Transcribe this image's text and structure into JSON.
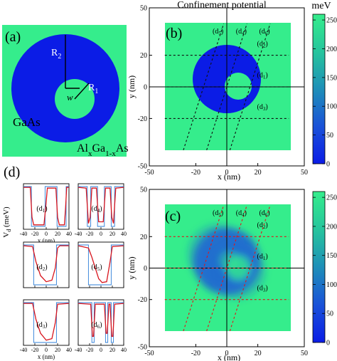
{
  "figure": {
    "title": "Confinement potential",
    "colorbar_unit": "meV",
    "colorbar_ticks": [
      "250",
      "200",
      "150",
      "100",
      "50",
      "0"
    ],
    "colors": {
      "barrier": "#35ed8c",
      "well": "#0b1ce6",
      "trace_red": "#d8141d",
      "trace_blue": "#2f7fd8",
      "dashed_black": "#111111",
      "dashed_red": "#e0161a"
    }
  },
  "panel_a": {
    "label": "(a)",
    "r2_main": "R",
    "r2_sub": "2",
    "r1_main": "R",
    "r1_sub": "1",
    "w_label": "w",
    "inner_material": "GaAs",
    "outer_parts": [
      {
        "t": "Al",
        "s": false
      },
      {
        "t": "x",
        "s": true
      },
      {
        "t": "Ga",
        "s": false
      },
      {
        "t": "1-x",
        "s": true
      },
      {
        "t": "As",
        "s": false
      }
    ]
  },
  "panel_d": {
    "label": "(d)",
    "ylabel_main": "V",
    "ylabel_sub": "d",
    "ylabel_unit": " (meV)",
    "xlabel": "x (nm)",
    "x_ticks": [
      "-40",
      "-20",
      "0",
      "20",
      "40"
    ],
    "subs": [
      {
        "main": "(d",
        "sub": "1",
        "close": ")"
      },
      {
        "main": "(d",
        "sub": "4",
        "close": ")"
      },
      {
        "main": "(d",
        "sub": "2",
        "close": ")"
      },
      {
        "main": "(d",
        "sub": "5",
        "close": ")"
      },
      {
        "main": "(d",
        "sub": "3",
        "close": ")"
      },
      {
        "main": "(d",
        "sub": "6",
        "close": ")"
      }
    ]
  },
  "chart_data": [
    {
      "type": "heatmap",
      "panel": "(b)",
      "title": "Confinement potential",
      "xlabel": "x (nm)",
      "ylabel": "y (nm)",
      "xlim": [
        -50,
        50
      ],
      "ylim": [
        -50,
        50
      ],
      "x_ticks": [
        -50,
        -20,
        0,
        20,
        50
      ],
      "y_ticks": [
        50,
        20,
        0,
        -20,
        -50
      ],
      "colorbar": {
        "unit": "meV",
        "range": [
          0,
          260
        ],
        "ticks": [
          250,
          200,
          150,
          100,
          50,
          0
        ]
      },
      "domain": {
        "x": [
          -40,
          40
        ],
        "y": [
          -40,
          40
        ]
      },
      "ring": {
        "outer_center": [
          0,
          5
        ],
        "outer_radius": 27,
        "inner_center": [
          8,
          0
        ],
        "inner_radius": 11
      },
      "cut_lines": [
        {
          "label": "d1",
          "kind": "horizontal",
          "y": 0
        },
        {
          "label": "d2",
          "kind": "horizontal",
          "y": 20
        },
        {
          "label": "d3",
          "kind": "horizontal",
          "y": -20
        },
        {
          "label": "d4",
          "kind": "slanted",
          "from": [
            -13,
            -40
          ],
          "to": [
            13,
            40
          ]
        },
        {
          "label": "d5",
          "kind": "slanted",
          "from": [
            -28,
            -40
          ],
          "to": [
            -2,
            40
          ]
        },
        {
          "label": "d6",
          "kind": "slanted",
          "from": [
            2,
            -40
          ],
          "to": [
            28,
            40
          ]
        }
      ]
    },
    {
      "type": "heatmap",
      "panel": "(c)",
      "xlabel": "x (nm)",
      "ylabel": "y (nm)",
      "xlim": [
        -50,
        50
      ],
      "ylim": [
        -50,
        50
      ],
      "x_ticks": [
        -50,
        -20,
        0,
        20,
        50
      ],
      "y_ticks": [
        50,
        20,
        0,
        -20,
        -50
      ],
      "colorbar": {
        "unit": "meV",
        "range": [
          0,
          260
        ],
        "ticks": [
          250,
          200,
          150,
          100,
          50,
          0
        ]
      },
      "domain": {
        "x": [
          -40,
          40
        ],
        "y": [
          -40,
          40
        ]
      },
      "cut_lines": [
        {
          "label": "d1",
          "kind": "horizontal",
          "y": 0
        },
        {
          "label": "d2",
          "kind": "horizontal",
          "y": 20
        },
        {
          "label": "d3",
          "kind": "horizontal",
          "y": -20
        },
        {
          "label": "d4",
          "kind": "slanted",
          "from": [
            -13,
            -40
          ],
          "to": [
            13,
            40
          ]
        },
        {
          "label": "d5",
          "kind": "slanted",
          "from": [
            -28,
            -40
          ],
          "to": [
            -2,
            40
          ]
        },
        {
          "label": "d6",
          "kind": "slanted",
          "from": [
            2,
            -40
          ],
          "to": [
            28,
            40
          ]
        }
      ]
    },
    {
      "type": "line",
      "panel": "(d)",
      "xlabel": "x (nm)",
      "ylabel": "Vd (meV)",
      "xlim": [
        -40,
        40
      ],
      "ylim": [
        0,
        260
      ],
      "subplots": [
        {
          "label": "d1",
          "ideal": [
            [
              -40,
              260
            ],
            [
              -26,
              260
            ],
            [
              -26,
              0
            ],
            [
              -2,
              0
            ],
            [
              -2,
              260
            ],
            [
              19,
              260
            ],
            [
              19,
              0
            ],
            [
              35,
              0
            ],
            [
              35,
              260
            ],
            [
              40,
              260
            ]
          ],
          "smooth": [
            [
              -40,
              255
            ],
            [
              -28,
              255
            ],
            [
              -25,
              60
            ],
            [
              -22,
              10
            ],
            [
              -4,
              10
            ],
            [
              -1,
              120
            ],
            [
              2,
              250
            ],
            [
              17,
              250
            ],
            [
              20,
              60
            ],
            [
              23,
              10
            ],
            [
              32,
              10
            ],
            [
              34,
              120
            ],
            [
              36,
              255
            ],
            [
              40,
              255
            ]
          ]
        },
        {
          "label": "d4",
          "ideal": [
            [
              -40,
              260
            ],
            [
              -24,
              260
            ],
            [
              -24,
              0
            ],
            [
              -18,
              0
            ],
            [
              -18,
              260
            ],
            [
              -6,
              260
            ],
            [
              -6,
              0
            ],
            [
              6,
              0
            ],
            [
              6,
              260
            ],
            [
              18,
              260
            ],
            [
              18,
              0
            ],
            [
              24,
              0
            ],
            [
              24,
              260
            ],
            [
              40,
              260
            ]
          ],
          "smooth": [
            [
              -40,
              255
            ],
            [
              -26,
              250
            ],
            [
              -22,
              20
            ],
            [
              -19,
              60
            ],
            [
              -16,
              250
            ],
            [
              -8,
              250
            ],
            [
              -4,
              30
            ],
            [
              4,
              30
            ],
            [
              8,
              250
            ],
            [
              16,
              250
            ],
            [
              19,
              60
            ],
            [
              22,
              20
            ],
            [
              26,
              250
            ],
            [
              40,
              255
            ]
          ]
        },
        {
          "label": "d2",
          "ideal": [
            [
              -40,
              260
            ],
            [
              -22,
              260
            ],
            [
              -22,
              0
            ],
            [
              18,
              0
            ],
            [
              18,
              260
            ],
            [
              40,
              260
            ]
          ],
          "smooth": [
            [
              -40,
              255
            ],
            [
              -24,
              250
            ],
            [
              -18,
              150
            ],
            [
              -10,
              60
            ],
            [
              0,
              20
            ],
            [
              10,
              30
            ],
            [
              16,
              110
            ],
            [
              20,
              240
            ],
            [
              24,
              255
            ],
            [
              40,
              255
            ]
          ]
        },
        {
          "label": "d5",
          "ideal": [
            [
              -40,
              260
            ],
            [
              -22,
              260
            ],
            [
              -22,
              0
            ],
            [
              18,
              0
            ],
            [
              18,
              260
            ],
            [
              40,
              260
            ]
          ],
          "smooth": [
            [
              -40,
              255
            ],
            [
              -22,
              240
            ],
            [
              -16,
              180
            ],
            [
              -10,
              110
            ],
            [
              -4,
              40
            ],
            [
              2,
              15
            ],
            [
              10,
              20
            ],
            [
              16,
              150
            ],
            [
              20,
              250
            ],
            [
              40,
              255
            ]
          ]
        },
        {
          "label": "d3",
          "ideal": [
            [
              -40,
              260
            ],
            [
              -22,
              260
            ],
            [
              -22,
              0
            ],
            [
              18,
              0
            ],
            [
              18,
              260
            ],
            [
              40,
              260
            ]
          ],
          "smooth": [
            [
              -40,
              255
            ],
            [
              -24,
              255
            ],
            [
              -18,
              150
            ],
            [
              -10,
              60
            ],
            [
              0,
              15
            ],
            [
              10,
              25
            ],
            [
              16,
              130
            ],
            [
              20,
              250
            ],
            [
              40,
              255
            ]
          ]
        },
        {
          "label": "d6",
          "ideal": [
            [
              -40,
              260
            ],
            [
              -16,
              260
            ],
            [
              -16,
              0
            ],
            [
              -12,
              0
            ],
            [
              -12,
              260
            ],
            [
              8,
              260
            ],
            [
              8,
              0
            ],
            [
              12,
              0
            ],
            [
              12,
              260
            ],
            [
              18,
              260
            ],
            [
              18,
              0
            ],
            [
              22,
              0
            ],
            [
              22,
              260
            ],
            [
              40,
              260
            ]
          ],
          "smooth": [
            [
              -40,
              255
            ],
            [
              -18,
              250
            ],
            [
              -15,
              40
            ],
            [
              -13,
              40
            ],
            [
              -10,
              250
            ],
            [
              6,
              250
            ],
            [
              9,
              60
            ],
            [
              11,
              60
            ],
            [
              14,
              250
            ],
            [
              16,
              250
            ],
            [
              19,
              40
            ],
            [
              21,
              40
            ],
            [
              24,
              250
            ],
            [
              40,
              255
            ]
          ]
        }
      ]
    }
  ]
}
